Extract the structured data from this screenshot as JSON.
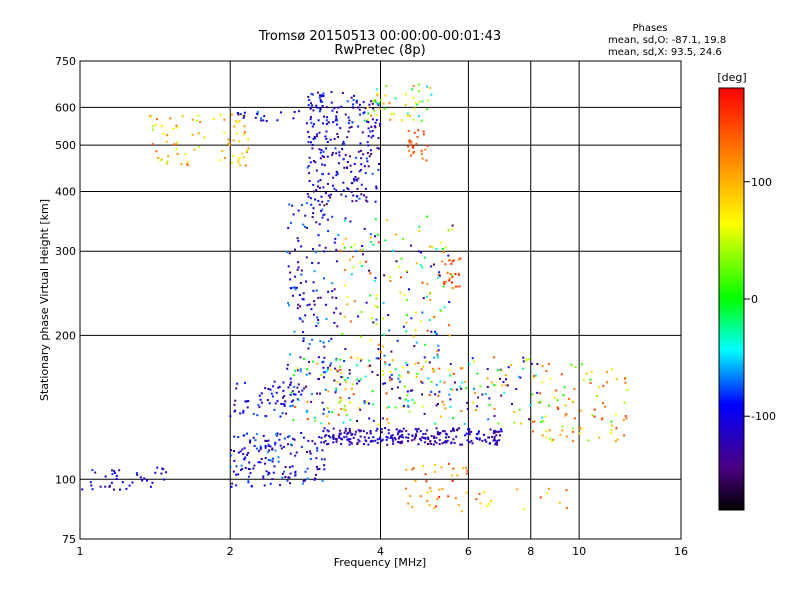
{
  "chart_data": {
    "type": "scatter",
    "title": "Tromsø 20150513 00:00:00-00:01:43",
    "subtitle": "RwPretec (8p)",
    "xlabel": "Frequency [MHz]",
    "ylabel": "Stationary phase Virtual Height [km]",
    "x_scale": "log",
    "y_scale": "log",
    "xlim": [
      1,
      16
    ],
    "ylim": [
      75,
      750
    ],
    "x_ticks": [
      1,
      2,
      4,
      6,
      8,
      10,
      16
    ],
    "x_tick_labels": [
      "1",
      "2",
      "4",
      "6",
      "8",
      "10",
      "16"
    ],
    "y_ticks": [
      75,
      100,
      200,
      300,
      400,
      500,
      600,
      750
    ],
    "y_tick_labels": [
      "75",
      "100",
      "200",
      "300",
      "400",
      "500",
      "600",
      "750"
    ],
    "grid": true,
    "stats": {
      "heading": "Phases",
      "line_o": "mean, sd,O: -87.1, 19.8",
      "line_x": "mean, sd,X:  93.5, 24.6"
    },
    "colorbar": {
      "label": "[deg]",
      "range": [
        -180,
        180
      ],
      "tick_values": [
        100,
        0,
        -100
      ],
      "tick_labels": [
        "100",
        "0",
        "-100"
      ],
      "colormap": "rainbow"
    },
    "clusters": [
      {
        "x": [
          1.38,
          2.2
        ],
        "y": [
          450,
          580
        ],
        "phase": [
          40,
          140
        ],
        "count": 80
      },
      {
        "x": [
          2.05,
          2.75
        ],
        "y": [
          560,
          590
        ],
        "phase": [
          -130,
          -60
        ],
        "count": 20
      },
      {
        "x": [
          2.85,
          4.0
        ],
        "y": [
          380,
          650
        ],
        "phase": [
          -150,
          -70
        ],
        "count": 260
      },
      {
        "x": [
          3.7,
          5.1
        ],
        "y": [
          560,
          670
        ],
        "phase": [
          -60,
          130
        ],
        "count": 50
      },
      {
        "x": [
          4.5,
          5.0
        ],
        "y": [
          460,
          540
        ],
        "phase": [
          120,
          160
        ],
        "count": 25
      },
      {
        "x": [
          2.6,
          3.3
        ],
        "y": [
          150,
          380
        ],
        "phase": [
          -150,
          -60
        ],
        "count": 160
      },
      {
        "x": [
          3.3,
          5.6
        ],
        "y": [
          140,
          360
        ],
        "phase": [
          -160,
          160
        ],
        "count": 210
      },
      {
        "x": [
          5.3,
          5.8
        ],
        "y": [
          250,
          290
        ],
        "phase": [
          120,
          170
        ],
        "count": 25
      },
      {
        "x": [
          2.0,
          2.7
        ],
        "y": [
          135,
          160
        ],
        "phase": [
          -140,
          -70
        ],
        "count": 60
      },
      {
        "x": [
          2.6,
          8.5
        ],
        "y": [
          130,
          180
        ],
        "phase": [
          -160,
          160
        ],
        "count": 230
      },
      {
        "x": [
          8.0,
          12.5
        ],
        "y": [
          120,
          175
        ],
        "phase": [
          0,
          160
        ],
        "count": 90
      },
      {
        "x": [
          3.0,
          7.0
        ],
        "y": [
          118,
          128
        ],
        "phase": [
          -150,
          -90
        ],
        "count": 260
      },
      {
        "x": [
          2.0,
          3.1
        ],
        "y": [
          96,
          125
        ],
        "phase": [
          -140,
          -60
        ],
        "count": 160
      },
      {
        "x": [
          1.0,
          1.5
        ],
        "y": [
          95,
          106
        ],
        "phase": [
          -140,
          -80
        ],
        "count": 40
      },
      {
        "x": [
          4.5,
          6.0
        ],
        "y": [
          85,
          108
        ],
        "phase": [
          80,
          170
        ],
        "count": 40
      },
      {
        "x": [
          6.0,
          9.5
        ],
        "y": [
          85,
          100
        ],
        "phase": [
          40,
          150
        ],
        "count": 15
      }
    ]
  }
}
